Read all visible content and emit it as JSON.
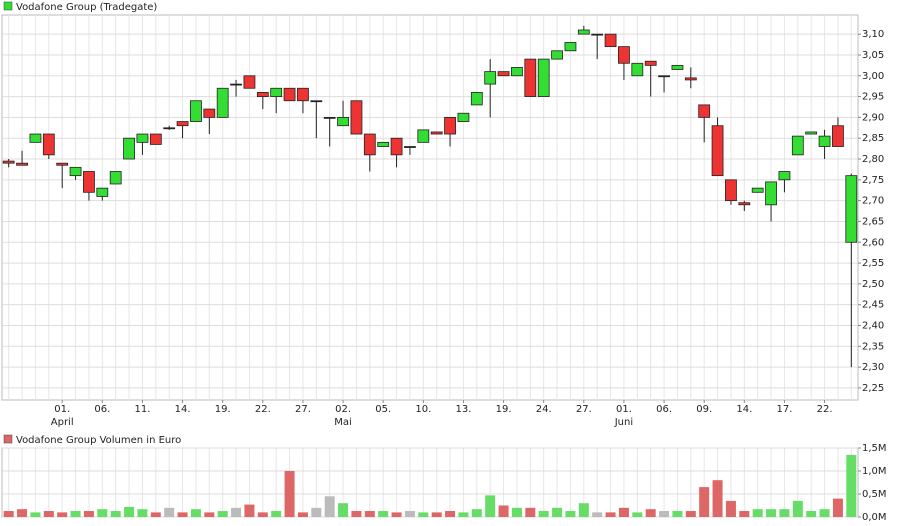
{
  "chart_data": [
    {
      "type": "candlestick",
      "title": "Vodafone Group (Tradegate)",
      "legend_color": "#33dd33",
      "categories": [
        null,
        null,
        null,
        null,
        "01.",
        null,
        null,
        "06.",
        null,
        null,
        "11.",
        null,
        null,
        "14.",
        null,
        null,
        "19.",
        null,
        null,
        "22.",
        null,
        null,
        "27.",
        null,
        null,
        "02.",
        null,
        null,
        "05.",
        null,
        null,
        "10.",
        null,
        null,
        "13.",
        null,
        null,
        "19.",
        null,
        null,
        "24.",
        null,
        null,
        "27.",
        null,
        null,
        "01.",
        null,
        null,
        "06.",
        null,
        null,
        "09.",
        null,
        null,
        "14.",
        null,
        null,
        "17.",
        null,
        null,
        "22.",
        null,
        null
      ],
      "months": [
        null,
        null,
        null,
        null,
        "April",
        null,
        null,
        null,
        null,
        null,
        null,
        null,
        null,
        null,
        null,
        null,
        null,
        null,
        null,
        null,
        null,
        null,
        null,
        null,
        null,
        "Mai",
        null,
        null,
        null,
        null,
        null,
        null,
        null,
        null,
        null,
        null,
        null,
        null,
        null,
        null,
        null,
        null,
        null,
        null,
        null,
        null,
        "Juni",
        null,
        null,
        null,
        null,
        null,
        null,
        null,
        null,
        null,
        null,
        null,
        null,
        null,
        null,
        null,
        null,
        null
      ],
      "open": [
        2.795,
        2.79,
        2.84,
        2.86,
        2.79,
        2.76,
        2.77,
        2.71,
        2.74,
        2.8,
        2.84,
        2.86,
        2.875,
        2.89,
        2.89,
        2.92,
        2.9,
        2.98,
        3.0,
        2.96,
        2.95,
        2.97,
        2.97,
        2.94,
        2.9,
        2.88,
        2.94,
        2.86,
        2.83,
        2.85,
        2.83,
        2.84,
        2.865,
        2.9,
        2.89,
        2.93,
        2.98,
        3.01,
        3.0,
        3.04,
        2.95,
        3.04,
        3.06,
        3.1,
        3.1,
        3.1,
        3.07,
        3.0,
        3.035,
        3.0,
        3.015,
        2.995,
        2.93,
        2.88,
        2.75,
        2.695,
        2.72,
        2.69,
        2.75,
        2.81,
        2.86,
        2.83,
        2.88,
        2.6
      ],
      "high": [
        2.8,
        2.82,
        2.86,
        2.86,
        2.79,
        2.78,
        2.77,
        2.73,
        2.77,
        2.85,
        2.86,
        2.86,
        2.88,
        2.89,
        2.94,
        2.92,
        2.97,
        2.99,
        3.0,
        2.96,
        2.97,
        2.97,
        2.97,
        2.94,
        2.9,
        2.94,
        2.94,
        2.86,
        2.84,
        2.85,
        2.83,
        2.87,
        2.865,
        2.9,
        2.91,
        2.96,
        3.04,
        3.01,
        3.02,
        3.04,
        3.04,
        3.06,
        3.08,
        3.12,
        3.1,
        3.1,
        3.07,
        3.03,
        3.035,
        3.0,
        3.025,
        3.02,
        2.93,
        2.9,
        2.75,
        2.7,
        2.73,
        2.745,
        2.77,
        2.855,
        2.865,
        2.87,
        2.9,
        2.765
      ],
      "low": [
        2.78,
        2.79,
        2.84,
        2.8,
        2.73,
        2.75,
        2.7,
        2.7,
        2.74,
        2.8,
        2.81,
        2.835,
        2.87,
        2.85,
        2.89,
        2.86,
        2.9,
        2.95,
        2.97,
        2.92,
        2.91,
        2.94,
        2.91,
        2.85,
        2.83,
        2.88,
        2.86,
        2.77,
        2.83,
        2.78,
        2.81,
        2.84,
        2.86,
        2.83,
        2.89,
        2.93,
        2.9,
        3.0,
        3.0,
        2.95,
        2.95,
        3.04,
        3.06,
        3.1,
        3.04,
        3.07,
        2.99,
        3.0,
        2.95,
        2.96,
        3.015,
        2.97,
        2.84,
        2.76,
        2.69,
        2.675,
        2.72,
        2.65,
        2.72,
        2.81,
        2.86,
        2.8,
        2.83,
        2.3
      ],
      "close": [
        2.79,
        2.785,
        2.86,
        2.81,
        2.785,
        2.78,
        2.72,
        2.73,
        2.77,
        2.85,
        2.86,
        2.835,
        2.875,
        2.88,
        2.94,
        2.9,
        2.97,
        2.98,
        2.97,
        2.95,
        2.97,
        2.94,
        2.94,
        2.94,
        2.9,
        2.9,
        2.86,
        2.81,
        2.84,
        2.81,
        2.83,
        2.87,
        2.86,
        2.86,
        2.91,
        2.96,
        3.01,
        3.0,
        3.02,
        2.95,
        3.04,
        3.06,
        3.08,
        3.11,
        3.1,
        3.07,
        3.03,
        3.03,
        3.025,
        3.0,
        3.025,
        2.99,
        2.9,
        2.76,
        2.7,
        2.69,
        2.73,
        2.745,
        2.77,
        2.855,
        2.865,
        2.855,
        2.83,
        2.76
      ],
      "up_color": "#33dd33",
      "down_color": "#ee3333",
      "flat_color": "#222222",
      "ylim": [
        2.221,
        3.146
      ],
      "yticks": [
        {
          "value": 2.25,
          "label": "2,25"
        },
        {
          "value": 2.3,
          "label": "2,30"
        },
        {
          "value": 2.35,
          "label": "2,35"
        },
        {
          "value": 2.4,
          "label": "2,40"
        },
        {
          "value": 2.45,
          "label": "2,45"
        },
        {
          "value": 2.5,
          "label": "2,50"
        },
        {
          "value": 2.55,
          "label": "2,55"
        },
        {
          "value": 2.6,
          "label": "2,60"
        },
        {
          "value": 2.65,
          "label": "2,65"
        },
        {
          "value": 2.7,
          "label": "2,70"
        },
        {
          "value": 2.75,
          "label": "2,75"
        },
        {
          "value": 2.8,
          "label": "2,80"
        },
        {
          "value": 2.85,
          "label": "2,85"
        },
        {
          "value": 2.9,
          "label": "2,90"
        },
        {
          "value": 2.95,
          "label": "2,95"
        },
        {
          "value": 3.0,
          "label": "3,00"
        },
        {
          "value": 3.05,
          "label": "3,05"
        },
        {
          "value": 3.1,
          "label": "3,10"
        }
      ],
      "grid": true
    },
    {
      "type": "bar",
      "title": "Vodafone Group Volumen in Euro",
      "legend_color": "#dd6666",
      "values": [
        130000,
        170000,
        100000,
        130000,
        100000,
        130000,
        130000,
        170000,
        130000,
        220000,
        170000,
        100000,
        200000,
        100000,
        170000,
        100000,
        130000,
        200000,
        270000,
        100000,
        130000,
        1000000,
        100000,
        200000,
        450000,
        300000,
        130000,
        130000,
        130000,
        100000,
        130000,
        100000,
        100000,
        130000,
        100000,
        170000,
        470000,
        250000,
        200000,
        200000,
        130000,
        200000,
        130000,
        300000,
        100000,
        100000,
        200000,
        100000,
        170000,
        130000,
        130000,
        130000,
        650000,
        800000,
        350000,
        130000,
        170000,
        170000,
        170000,
        350000,
        130000,
        170000,
        400000,
        1350000
      ],
      "up_color": "#66dd66",
      "down_color": "#dd6666",
      "flat_color": "#bbbbbb",
      "ylim": [
        0,
        1500000
      ],
      "yticks": [
        {
          "value": 0,
          "label": "0,0M"
        },
        {
          "value": 500000,
          "label": "0,5M"
        },
        {
          "value": 1000000,
          "label": "1,0M"
        },
        {
          "value": 1500000,
          "label": "1,5M"
        }
      ],
      "grid": true
    }
  ]
}
